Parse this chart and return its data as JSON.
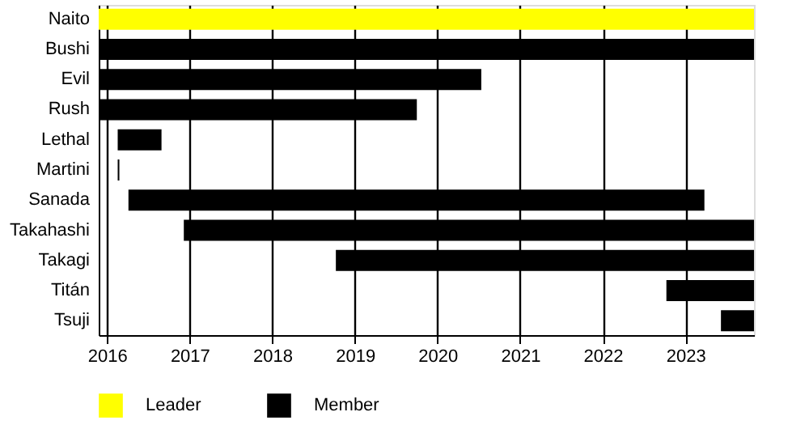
{
  "chart_data": {
    "type": "bar",
    "orientation": "horizontal",
    "categories": [
      "Naito",
      "Bushi",
      "Evil",
      "Rush",
      "Lethal",
      "Martini",
      "Sanada",
      "Takahashi",
      "Takagi",
      "Titán",
      "Tsuji"
    ],
    "series": [
      {
        "name": "Leader",
        "color": "#ffff00",
        "base": [
          2015.9,
          null,
          null,
          null,
          null,
          null,
          null,
          null,
          null,
          null,
          null
        ],
        "values": [
          7.93,
          null,
          null,
          null,
          null,
          null,
          null,
          null,
          null,
          null,
          null
        ]
      },
      {
        "name": "Member",
        "color": "#000000",
        "base": [
          null,
          2015.9,
          2015.9,
          2015.9,
          2016.13,
          2016.13,
          2016.26,
          2016.93,
          2018.77,
          2022.77,
          2023.43
        ],
        "values": [
          null,
          7.93,
          4.63,
          3.85,
          0.53,
          0.02,
          6.97,
          6.9,
          5.06,
          1.06,
          0.4
        ]
      }
    ],
    "xlim": [
      2015.9,
      2023.83
    ],
    "xticks": [
      2016,
      2017,
      2018,
      2019,
      2020,
      2021,
      2022,
      2023
    ],
    "grid": "x",
    "legend": "bottom"
  }
}
